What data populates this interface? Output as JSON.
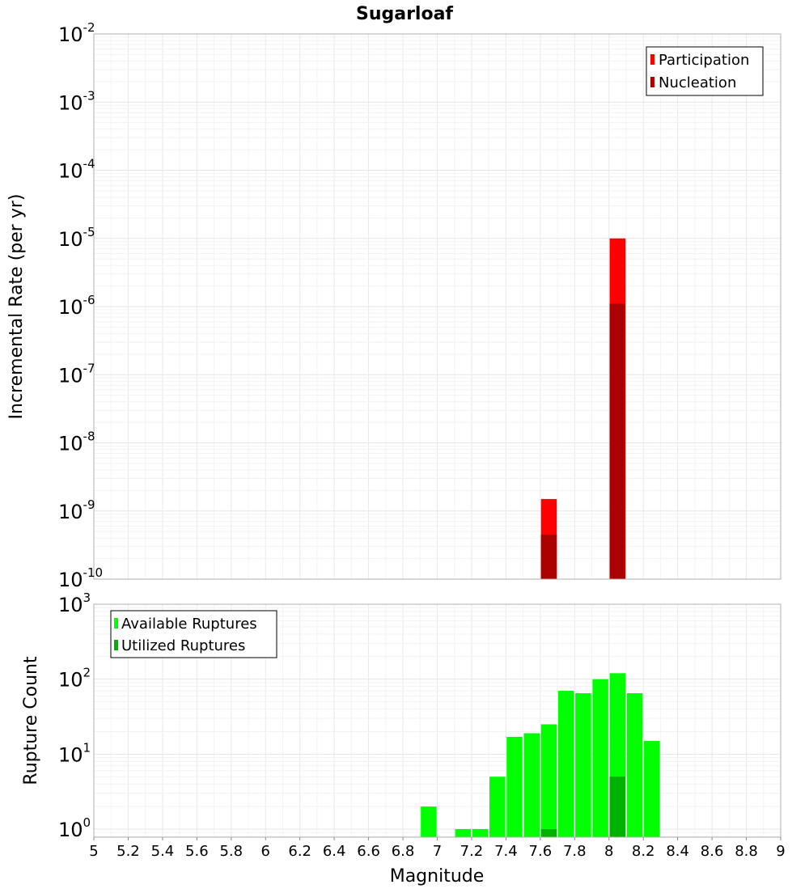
{
  "title": "Sugarloaf",
  "x_axis": {
    "label": "Magnitude",
    "ticks": [
      "5",
      "5.2",
      "5.4",
      "5.6",
      "5.8",
      "6",
      "6.2",
      "6.4",
      "6.6",
      "6.8",
      "7",
      "7.2",
      "7.4",
      "7.6",
      "7.8",
      "8",
      "8.2",
      "8.4",
      "8.6",
      "8.8",
      "9"
    ]
  },
  "colors": {
    "participation": "#ff0000",
    "nucleation": "#aa0000",
    "available": "#00ff00",
    "utilized": "#00b200",
    "grid": "#e6e6e6",
    "frame": "#b0b0b0"
  },
  "chart_data": [
    {
      "type": "bar",
      "panel": "top",
      "ylabel": "Incremental Rate (per yr)",
      "yscale": "log",
      "ylim": [
        1e-10,
        0.01
      ],
      "xlim": [
        5,
        9
      ],
      "yticks": [
        {
          "base": "10",
          "exp": "-2"
        },
        {
          "base": "10",
          "exp": "-3"
        },
        {
          "base": "10",
          "exp": "-4"
        },
        {
          "base": "10",
          "exp": "-5"
        },
        {
          "base": "10",
          "exp": "-6"
        },
        {
          "base": "10",
          "exp": "-7"
        },
        {
          "base": "10",
          "exp": "-8"
        },
        {
          "base": "10",
          "exp": "-9"
        },
        {
          "base": "10",
          "exp": "-10"
        }
      ],
      "legend": {
        "position": "top-right",
        "entries": [
          "Participation",
          "Nucleation"
        ]
      },
      "series": [
        {
          "name": "Participation",
          "x": [
            7.65,
            8.05
          ],
          "values": [
            1.5e-09,
            1e-05
          ]
        },
        {
          "name": "Nucleation",
          "x": [
            7.65,
            8.05
          ],
          "values": [
            4.5e-10,
            1.1e-06
          ]
        }
      ]
    },
    {
      "type": "bar",
      "panel": "bottom",
      "ylabel": "Rupture Count",
      "yscale": "log",
      "ylim": [
        0.78,
        1000
      ],
      "xlim": [
        5,
        9
      ],
      "xlabel": "Magnitude",
      "yticks": [
        {
          "base": "10",
          "exp": "3"
        },
        {
          "base": "10",
          "exp": "2"
        },
        {
          "base": "10",
          "exp": "1"
        },
        {
          "base": "10",
          "exp": "0"
        }
      ],
      "legend": {
        "position": "top-left",
        "entries": [
          "Available Ruptures",
          "Utilized Ruptures"
        ]
      },
      "series": [
        {
          "name": "Available Ruptures",
          "x": [
            6.95,
            7.15,
            7.25,
            7.35,
            7.45,
            7.55,
            7.65,
            7.75,
            7.85,
            7.95,
            8.05,
            8.15,
            8.25
          ],
          "values": [
            2,
            1,
            1,
            5,
            17,
            19,
            25,
            70,
            65,
            100,
            120,
            65,
            15
          ]
        },
        {
          "name": "Utilized Ruptures",
          "x": [
            7.65,
            8.05
          ],
          "values": [
            1,
            5
          ]
        }
      ]
    }
  ]
}
